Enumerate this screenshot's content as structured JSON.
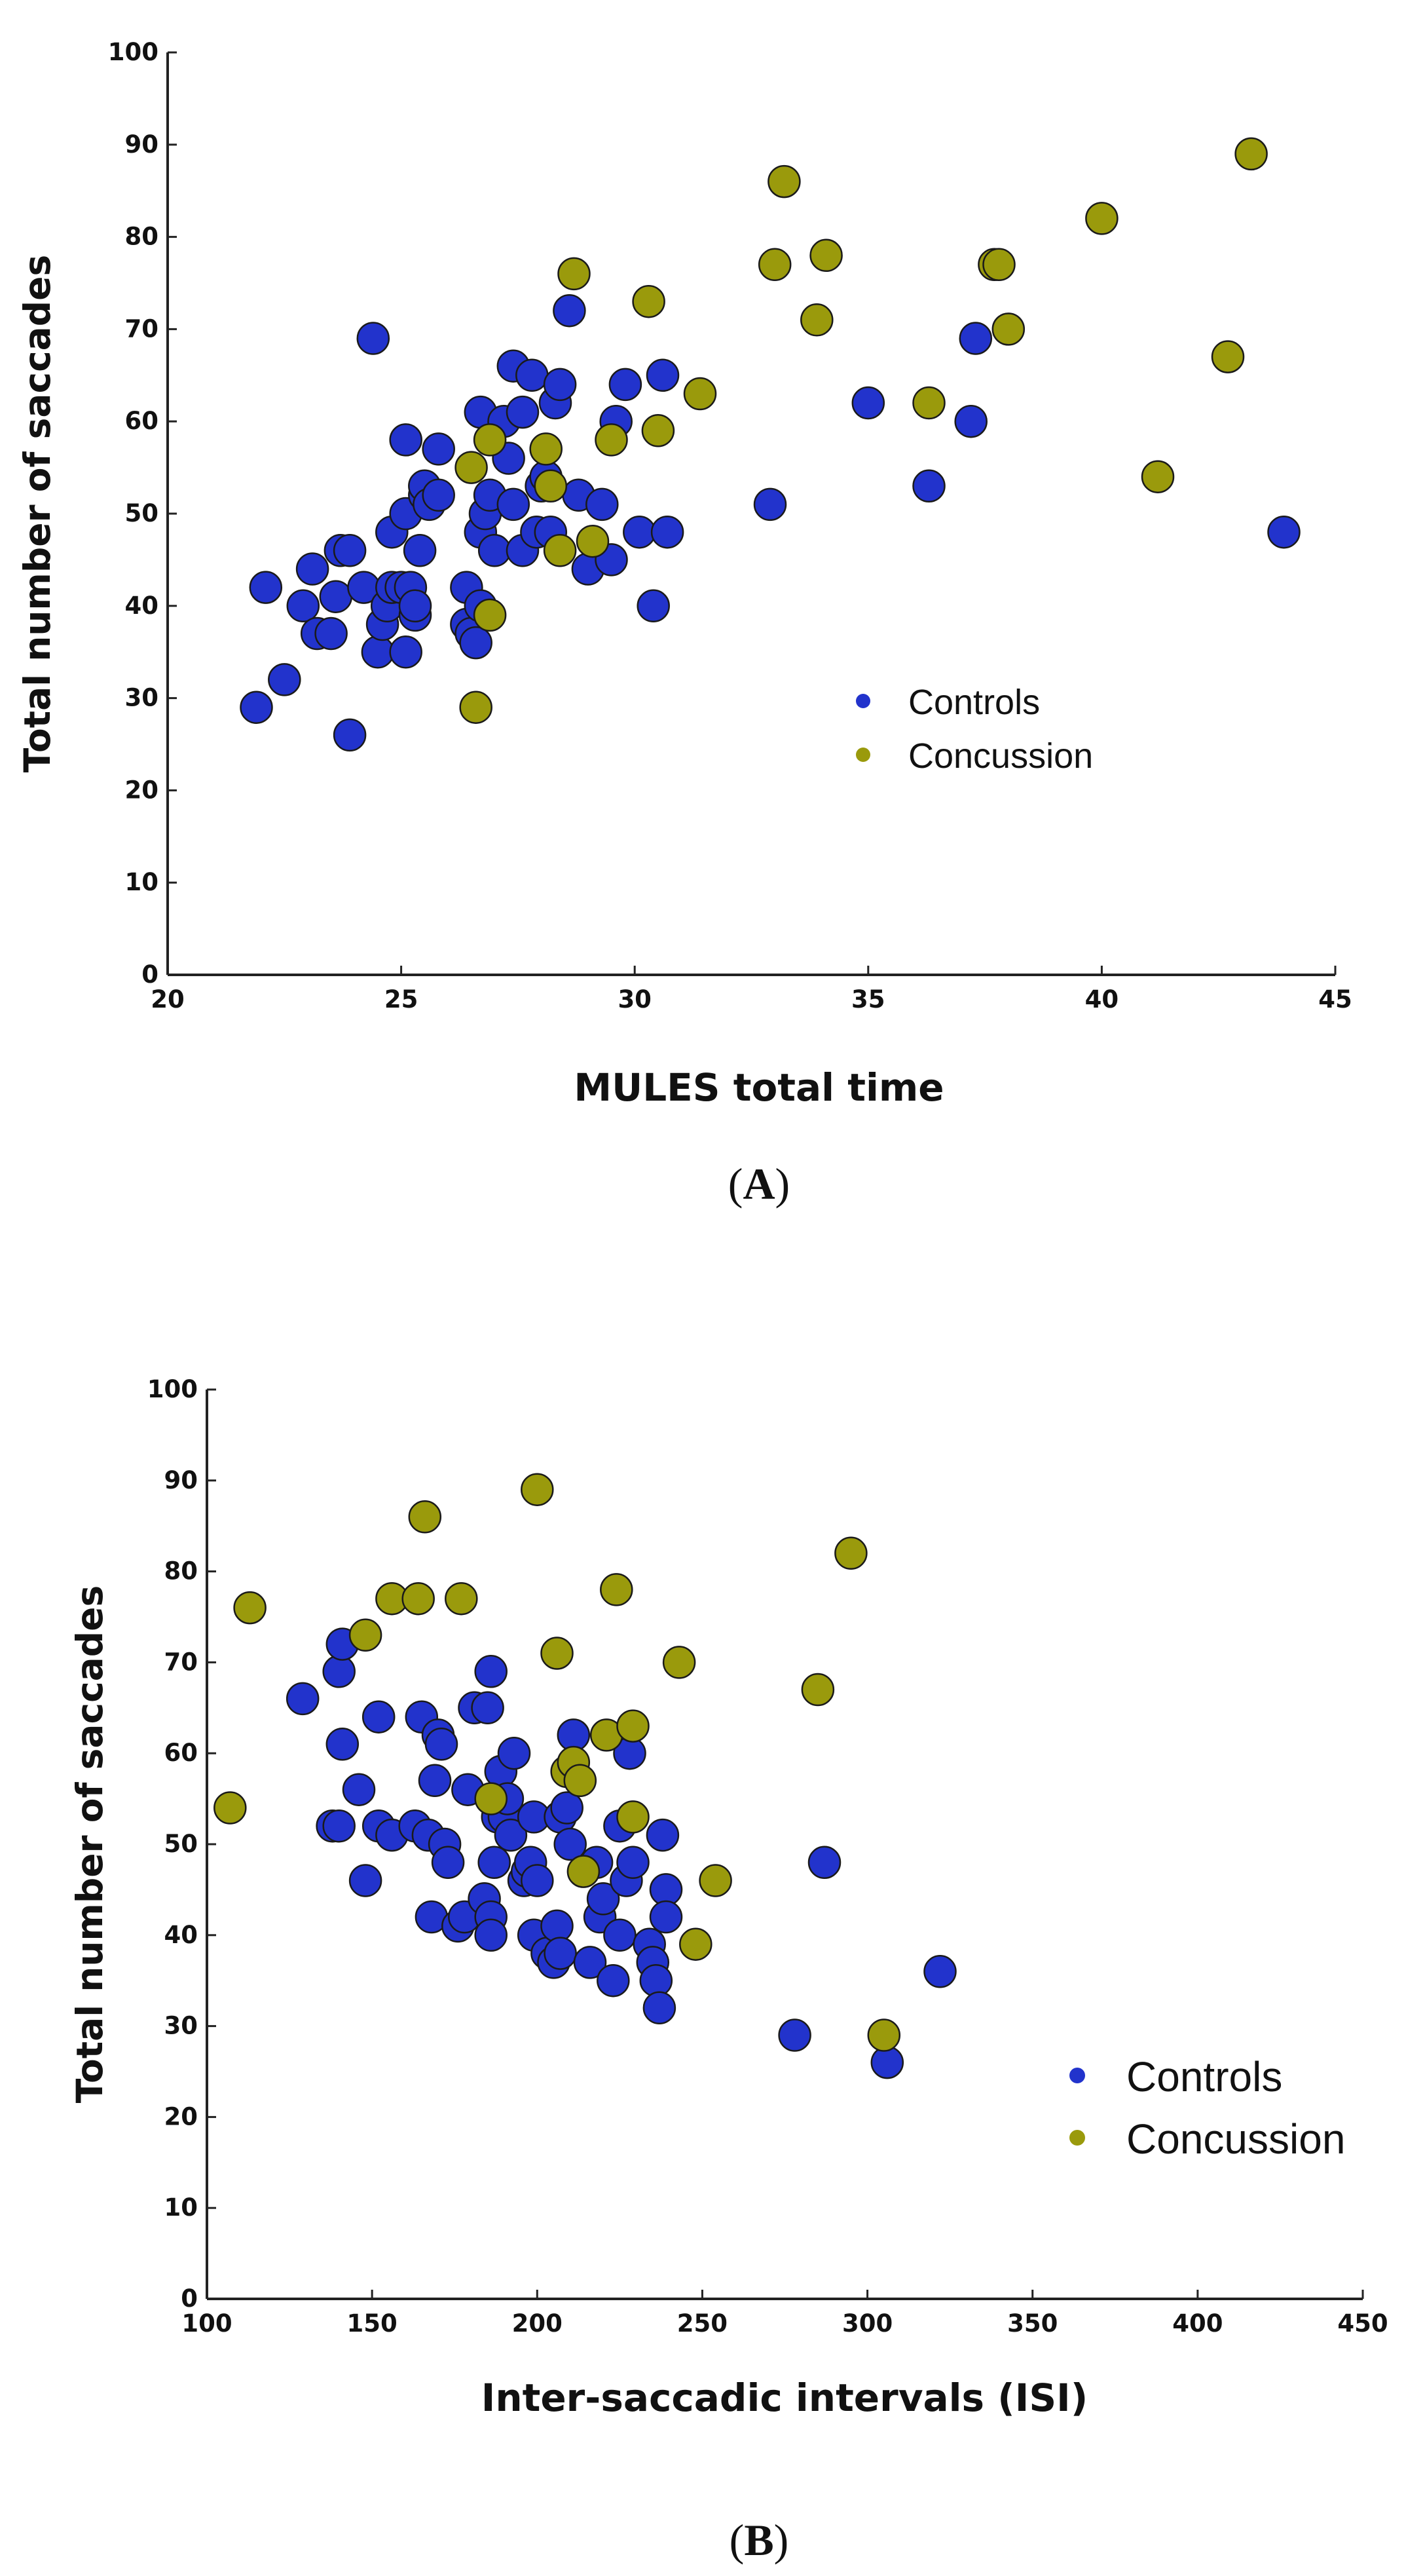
{
  "colors": {
    "controls": "#2233cc",
    "concussion": "#9a9a0c",
    "axis": "#222222"
  },
  "chart_data": [
    {
      "type": "scatter",
      "panel": "A",
      "caption_letter": "A",
      "xlabel": "MULES total time",
      "ylabel": "Total number of saccades",
      "xlim": [
        20,
        45
      ],
      "ylim": [
        0,
        100
      ],
      "xticks": [
        "20",
        "25",
        "30",
        "35",
        "40",
        "45"
      ],
      "yticks": [
        "0",
        "10",
        "20",
        "30",
        "40",
        "50",
        "60",
        "70",
        "80",
        "90",
        "100"
      ],
      "legend": {
        "position": "center-right",
        "entries": [
          "Controls",
          "Concussion"
        ]
      },
      "series": [
        {
          "name": "Controls",
          "points": [
            [
              21.9,
              29
            ],
            [
              22.1,
              42
            ],
            [
              22.5,
              32
            ],
            [
              22.9,
              40
            ],
            [
              23.1,
              44
            ],
            [
              23.2,
              37
            ],
            [
              23.5,
              37
            ],
            [
              23.6,
              41
            ],
            [
              23.7,
              46
            ],
            [
              23.9,
              46
            ],
            [
              23.9,
              26
            ],
            [
              24.2,
              42
            ],
            [
              24.4,
              69
            ],
            [
              24.5,
              35
            ],
            [
              24.6,
              38
            ],
            [
              24.7,
              40
            ],
            [
              24.8,
              48
            ],
            [
              24.8,
              42
            ],
            [
              25.0,
              42
            ],
            [
              25.1,
              50
            ],
            [
              25.1,
              35
            ],
            [
              25.1,
              58
            ],
            [
              25.2,
              42
            ],
            [
              25.3,
              39
            ],
            [
              25.3,
              40
            ],
            [
              25.4,
              46
            ],
            [
              25.5,
              52
            ],
            [
              25.5,
              53
            ],
            [
              25.6,
              51
            ],
            [
              25.8,
              52
            ],
            [
              25.8,
              57
            ],
            [
              26.4,
              42
            ],
            [
              26.4,
              38
            ],
            [
              26.5,
              37
            ],
            [
              26.6,
              36
            ],
            [
              26.7,
              40
            ],
            [
              26.7,
              48
            ],
            [
              26.7,
              61
            ],
            [
              26.8,
              50
            ],
            [
              26.9,
              52
            ],
            [
              27.0,
              46
            ],
            [
              27.2,
              60
            ],
            [
              27.3,
              56
            ],
            [
              27.4,
              51
            ],
            [
              27.4,
              66
            ],
            [
              27.6,
              61
            ],
            [
              27.6,
              46
            ],
            [
              27.8,
              65
            ],
            [
              27.9,
              48
            ],
            [
              28.0,
              53
            ],
            [
              28.1,
              54
            ],
            [
              28.2,
              48
            ],
            [
              28.3,
              62
            ],
            [
              28.4,
              64
            ],
            [
              28.6,
              72
            ],
            [
              28.8,
              52
            ],
            [
              29.0,
              44
            ],
            [
              29.3,
              51
            ],
            [
              29.5,
              45
            ],
            [
              29.6,
              60
            ],
            [
              29.8,
              64
            ],
            [
              30.1,
              48
            ],
            [
              30.4,
              40
            ],
            [
              30.6,
              65
            ],
            [
              30.7,
              48
            ],
            [
              32.9,
              51
            ],
            [
              35.0,
              62
            ],
            [
              36.3,
              53
            ],
            [
              37.2,
              60
            ],
            [
              37.3,
              69
            ],
            [
              43.9,
              48
            ]
          ]
        },
        {
          "name": "Concussion",
          "points": [
            [
              26.5,
              55
            ],
            [
              26.6,
              29
            ],
            [
              26.9,
              58
            ],
            [
              26.9,
              39
            ],
            [
              28.1,
              57
            ],
            [
              28.2,
              53
            ],
            [
              28.4,
              46
            ],
            [
              28.7,
              76
            ],
            [
              29.1,
              47
            ],
            [
              29.5,
              58
            ],
            [
              30.3,
              73
            ],
            [
              30.5,
              59
            ],
            [
              31.4,
              63
            ],
            [
              33.0,
              77
            ],
            [
              33.2,
              86
            ],
            [
              33.9,
              71
            ],
            [
              34.1,
              78
            ],
            [
              36.3,
              62
            ],
            [
              37.7,
              77
            ],
            [
              37.8,
              77
            ],
            [
              38.0,
              70
            ],
            [
              40.0,
              82
            ],
            [
              41.2,
              54
            ],
            [
              42.7,
              67
            ],
            [
              43.2,
              89
            ]
          ]
        }
      ]
    },
    {
      "type": "scatter",
      "panel": "B",
      "caption_letter": "B",
      "xlabel": "Inter-saccadic intervals (ISI)",
      "ylabel": "Total number of saccades",
      "xlim": [
        100,
        450
      ],
      "ylim": [
        0,
        100
      ],
      "xticks": [
        "100",
        "150",
        "200",
        "250",
        "300",
        "350",
        "400",
        "450"
      ],
      "yticks": [
        "0",
        "10",
        "20",
        "30",
        "40",
        "50",
        "60",
        "70",
        "80",
        "90",
        "100"
      ],
      "legend": {
        "position": "lower-right",
        "entries": [
          "Controls",
          "Concussion"
        ]
      },
      "series": [
        {
          "name": "Controls",
          "points": [
            [
              129,
              66
            ],
            [
              138,
              52
            ],
            [
              140,
              52
            ],
            [
              140,
              69
            ],
            [
              141,
              72
            ],
            [
              141,
              61
            ],
            [
              146,
              56
            ],
            [
              148,
              46
            ],
            [
              152,
              64
            ],
            [
              152,
              52
            ],
            [
              156,
              51
            ],
            [
              163,
              52
            ],
            [
              165,
              64
            ],
            [
              167,
              51
            ],
            [
              168,
              42
            ],
            [
              169,
              57
            ],
            [
              170,
              62
            ],
            [
              171,
              61
            ],
            [
              172,
              50
            ],
            [
              173,
              48
            ],
            [
              176,
              41
            ],
            [
              178,
              42
            ],
            [
              179,
              56
            ],
            [
              181,
              65
            ],
            [
              184,
              44
            ],
            [
              185,
              65
            ],
            [
              186,
              69
            ],
            [
              186,
              42
            ],
            [
              186,
              40
            ],
            [
              187,
              48
            ],
            [
              188,
              53
            ],
            [
              189,
              58
            ],
            [
              190,
              53
            ],
            [
              191,
              55
            ],
            [
              192,
              51
            ],
            [
              193,
              60
            ],
            [
              196,
              46
            ],
            [
              197,
              47
            ],
            [
              198,
              48
            ],
            [
              199,
              53
            ],
            [
              199,
              40
            ],
            [
              200,
              46
            ],
            [
              203,
              38
            ],
            [
              205,
              37
            ],
            [
              206,
              41
            ],
            [
              207,
              53
            ],
            [
              207,
              38
            ],
            [
              209,
              54
            ],
            [
              210,
              50
            ],
            [
              211,
              62
            ],
            [
              216,
              37
            ],
            [
              218,
              48
            ],
            [
              219,
              42
            ],
            [
              220,
              44
            ],
            [
              223,
              35
            ],
            [
              225,
              52
            ],
            [
              225,
              40
            ],
            [
              227,
              46
            ],
            [
              228,
              60
            ],
            [
              229,
              48
            ],
            [
              234,
              39
            ],
            [
              235,
              37
            ],
            [
              236,
              35
            ],
            [
              237,
              32
            ],
            [
              238,
              51
            ],
            [
              239,
              45
            ],
            [
              239,
              42
            ],
            [
              278,
              29
            ],
            [
              287,
              48
            ],
            [
              306,
              26
            ],
            [
              322,
              36
            ]
          ]
        },
        {
          "name": "Concussion",
          "points": [
            [
              107,
              54
            ],
            [
              113,
              76
            ],
            [
              148,
              73
            ],
            [
              156,
              77
            ],
            [
              164,
              77
            ],
            [
              166,
              86
            ],
            [
              177,
              77
            ],
            [
              186,
              55
            ],
            [
              200,
              89
            ],
            [
              206,
              71
            ],
            [
              209,
              58
            ],
            [
              211,
              59
            ],
            [
              213,
              57
            ],
            [
              214,
              47
            ],
            [
              221,
              62
            ],
            [
              224,
              78
            ],
            [
              229,
              63
            ],
            [
              229,
              53
            ],
            [
              243,
              70
            ],
            [
              248,
              39
            ],
            [
              254,
              46
            ],
            [
              285,
              67
            ],
            [
              295,
              82
            ],
            [
              305,
              29
            ]
          ]
        }
      ]
    }
  ]
}
